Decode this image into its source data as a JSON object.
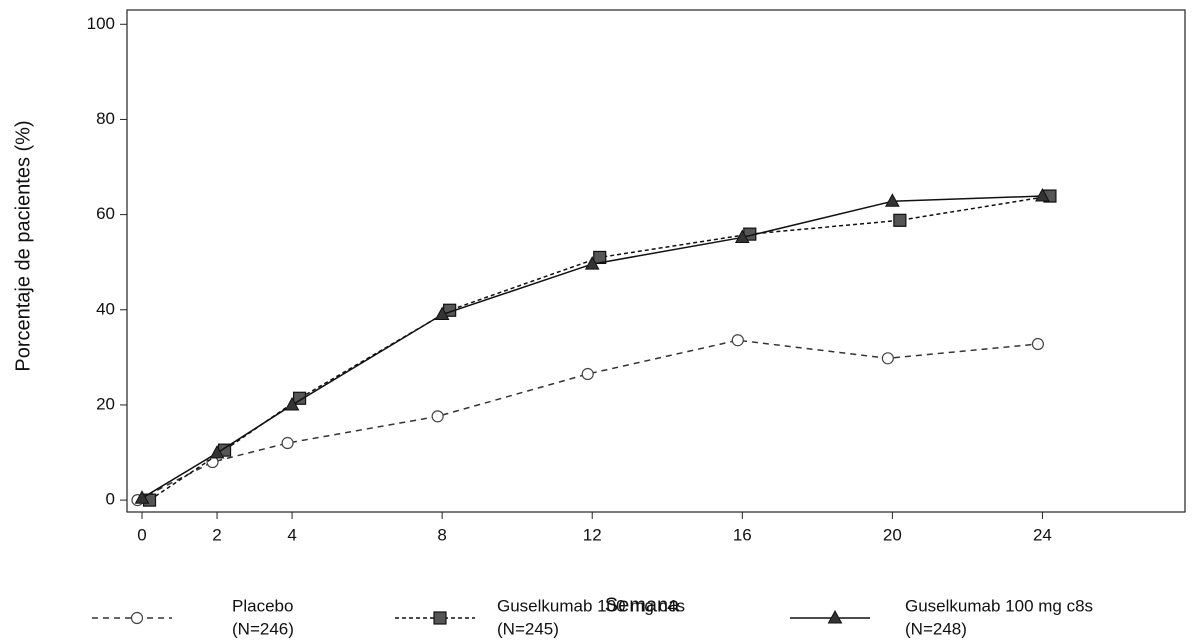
{
  "chart_data": {
    "type": "line",
    "x_label": "Semana",
    "y_label": "Porcentaje de pacientes (%)",
    "x": [
      0,
      2,
      4,
      8,
      12,
      16,
      20,
      24
    ],
    "xlim": [
      -0.4,
      27.8
    ],
    "xticks": [
      0,
      2,
      4,
      8,
      12,
      16,
      20,
      24
    ],
    "ylim": [
      -2.5,
      103
    ],
    "yticks": [
      0,
      20,
      40,
      60,
      80,
      100
    ],
    "series": [
      {
        "name": "Placebo",
        "n": "(N=246)",
        "color": "#333333",
        "marker": "circle",
        "dash": "6,5",
        "values": [
          0,
          8,
          12,
          17.6,
          26.5,
          33.6,
          29.8,
          32.8
        ]
      },
      {
        "name": "Guselkumab 100 mg c4s",
        "n": "(N=245)",
        "color": "#111111",
        "marker": "square",
        "dash": "4,3",
        "values": [
          0,
          10.5,
          21.4,
          39.9,
          51,
          55.9,
          58.8,
          63.9
        ]
      },
      {
        "name": "Guselkumab 100 mg c8s",
        "n": "(N=248)",
        "color": "#111111",
        "marker": "triangle",
        "dash": "none",
        "values": [
          0.4,
          9.9,
          20,
          39,
          49.6,
          55.2,
          62.8,
          63.9
        ]
      }
    ]
  }
}
